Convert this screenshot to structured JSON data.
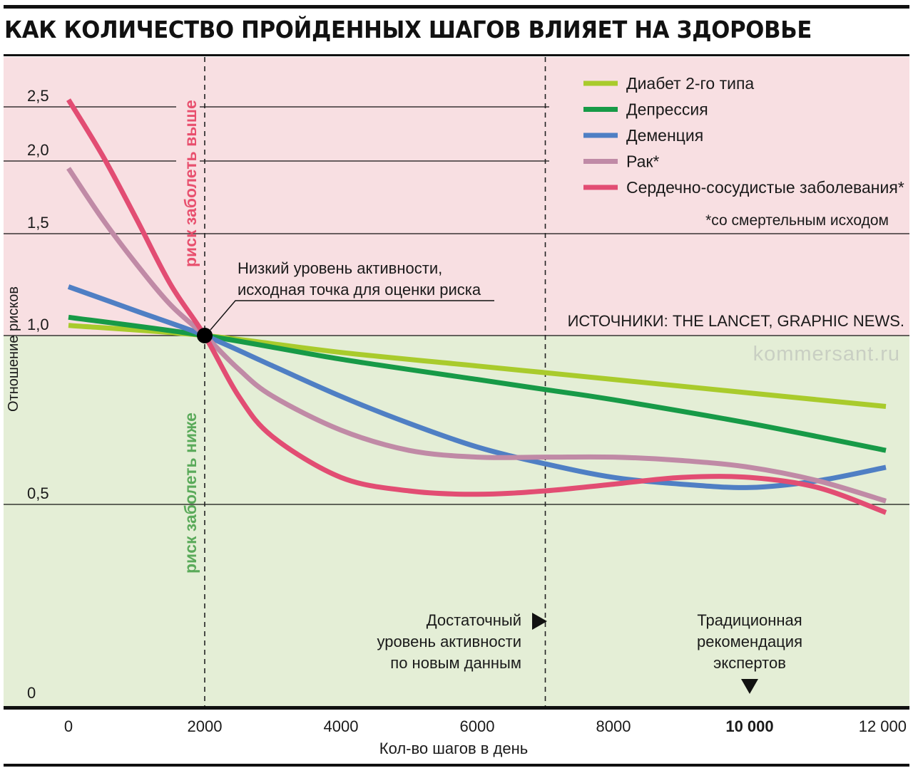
{
  "title": "КАК КОЛИЧЕСТВО ПРОЙДЕННЫХ ШАГОВ ВЛИЯЕТ НА ЗДОРОВЬЕ",
  "colors": {
    "risk_high_bg": "#f8dfe2",
    "risk_low_bg": "#e4eed6",
    "label_high": "#e8506e",
    "label_low": "#5aaa5a"
  },
  "chart_data": {
    "type": "line",
    "title": "КАК КОЛИЧЕСТВО ПРОЙДЕННЫХ ШАГОВ ВЛИЯЕТ НА ЗДОРОВЬЕ",
    "xlabel": "Кол-во шагов в день",
    "ylabel": "Отношение рисков",
    "xlim": [
      -1000,
      12300
    ],
    "ylim": [
      0,
      2.85
    ],
    "x_ticks": [
      {
        "value": 0,
        "label": "0",
        "bold": false
      },
      {
        "value": 2000,
        "label": "2000",
        "bold": false
      },
      {
        "value": 4000,
        "label": "4000",
        "bold": false
      },
      {
        "value": 6000,
        "label": "6000",
        "bold": false
      },
      {
        "value": 8000,
        "label": "8000",
        "bold": false
      },
      {
        "value": 10000,
        "label": "10 000",
        "bold": true
      },
      {
        "value": 12000,
        "label": "12 000",
        "bold": false
      }
    ],
    "y_ticks": [
      {
        "value": 0,
        "label": "0"
      },
      {
        "value": 0.5,
        "label": "0,5"
      },
      {
        "value": 1.0,
        "label": "1,0"
      },
      {
        "value": 1.5,
        "label": "1,5"
      },
      {
        "value": 2.0,
        "label": "2,0"
      },
      {
        "value": 2.5,
        "label": "2,5"
      }
    ],
    "series": [
      {
        "name": "Диабет 2-го типа",
        "color": "#a9cb2c",
        "points": [
          [
            0,
            1.05
          ],
          [
            2000,
            1.0
          ],
          [
            4000,
            0.95
          ],
          [
            6000,
            0.91
          ],
          [
            7000,
            0.89
          ],
          [
            8000,
            0.87
          ],
          [
            10000,
            0.83
          ],
          [
            12000,
            0.79
          ]
        ]
      },
      {
        "name": "Депрессия",
        "color": "#179a47",
        "points": [
          [
            0,
            1.09
          ],
          [
            2000,
            1.0
          ],
          [
            4000,
            0.93
          ],
          [
            6000,
            0.87
          ],
          [
            7000,
            0.84
          ],
          [
            8000,
            0.81
          ],
          [
            10000,
            0.74
          ],
          [
            12000,
            0.66
          ]
        ]
      },
      {
        "name": "Деменция",
        "color": "#4f7fc4",
        "points": [
          [
            0,
            1.24
          ],
          [
            1000,
            1.12
          ],
          [
            2000,
            1.0
          ],
          [
            3000,
            0.91
          ],
          [
            4000,
            0.82
          ],
          [
            5000,
            0.74
          ],
          [
            6000,
            0.67
          ],
          [
            7000,
            0.62
          ],
          [
            8000,
            0.58
          ],
          [
            9000,
            0.56
          ],
          [
            10000,
            0.55
          ],
          [
            11000,
            0.57
          ],
          [
            12000,
            0.61
          ]
        ]
      },
      {
        "name": "Рак*",
        "color": "#c08aa6",
        "points": [
          [
            0,
            1.95
          ],
          [
            500,
            1.6
          ],
          [
            1000,
            1.35
          ],
          [
            1500,
            1.15
          ],
          [
            2000,
            1.0
          ],
          [
            2500,
            0.9
          ],
          [
            3000,
            0.82
          ],
          [
            4000,
            0.72
          ],
          [
            5000,
            0.66
          ],
          [
            6000,
            0.64
          ],
          [
            7000,
            0.64
          ],
          [
            8000,
            0.64
          ],
          [
            9000,
            0.63
          ],
          [
            10000,
            0.61
          ],
          [
            11000,
            0.57
          ],
          [
            12000,
            0.51
          ]
        ]
      },
      {
        "name": "Сердечно-сосудистые заболевания*",
        "color": "#e24d73",
        "points": [
          [
            0,
            2.55
          ],
          [
            500,
            2.05
          ],
          [
            1000,
            1.6
          ],
          [
            1500,
            1.25
          ],
          [
            2000,
            1.0
          ],
          [
            2500,
            0.82
          ],
          [
            3000,
            0.7
          ],
          [
            4000,
            0.58
          ],
          [
            5000,
            0.54
          ],
          [
            6000,
            0.53
          ],
          [
            7000,
            0.54
          ],
          [
            8000,
            0.56
          ],
          [
            9000,
            0.58
          ],
          [
            10000,
            0.58
          ],
          [
            11000,
            0.55
          ],
          [
            12000,
            0.48
          ]
        ]
      }
    ],
    "legend_position": "top-right",
    "footnote": "*со смертельным исходом",
    "reference_lines": [
      {
        "x": 2000,
        "style": "dashed"
      },
      {
        "x": 7000,
        "style": "dashed"
      }
    ],
    "annotations": {
      "baseline": "Низкий уровень активности, исходная точка для оценки риска",
      "baseline_lines": [
        "Низкий уровень активности,",
        "исходная точка для оценки риска"
      ],
      "risk_higher": "риск заболеть выше",
      "risk_lower": "риск заболеть ниже",
      "sufficient": [
        "Достаточный",
        "уровень активности",
        "по новым данным"
      ],
      "traditional": [
        "Традиционная",
        "рекомендация",
        "экспертов"
      ],
      "sources": "ИСТОЧНИКИ: THE LANCET, GRAPHIC NEWS.",
      "watermark": "kommersant.ru"
    }
  }
}
